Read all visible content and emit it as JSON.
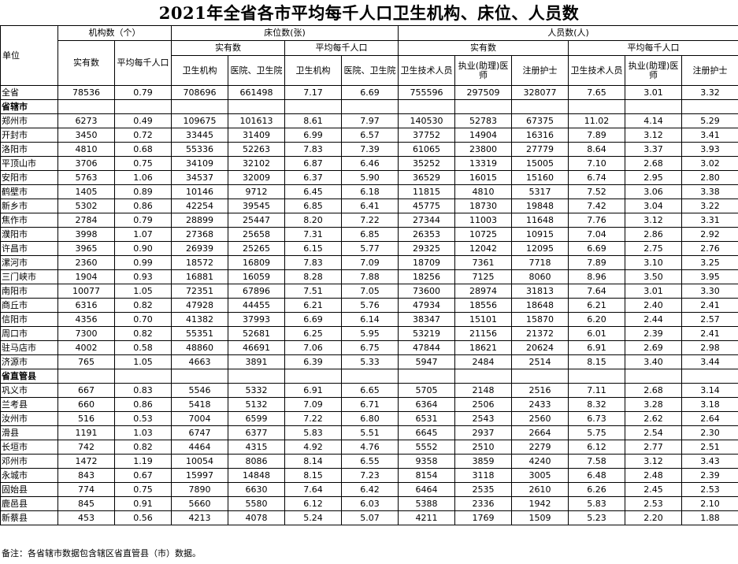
{
  "title": "2021年全省各市平均每千人口卫生机构、床位、人员数",
  "headers": {
    "unit": "单位",
    "institutions": "机构数（个）",
    "beds": "床位数(张)",
    "staff": "人员数(人)",
    "actual": "实有数",
    "per_thousand": "平均每千人口",
    "health_inst": "卫生机构",
    "hospital_center": "医院、卫生院",
    "health_tech": "卫生技术人员",
    "physician": "执业(助理)医师",
    "nurse": "注册护士"
  },
  "total_row": [
    "全省",
    "78536",
    "0.79",
    "708696",
    "661498",
    "7.17",
    "6.69",
    "755596",
    "297509",
    "328077",
    "7.65",
    "3.01",
    "3.32"
  ],
  "sections": [
    {
      "label": "省辖市",
      "rows": [
        [
          "郑州市",
          "6273",
          "0.49",
          "109675",
          "101613",
          "8.61",
          "7.97",
          "140530",
          "52783",
          "67375",
          "11.02",
          "4.14",
          "5.29"
        ],
        [
          "开封市",
          "3450",
          "0.72",
          "33445",
          "31409",
          "6.99",
          "6.57",
          "37752",
          "14904",
          "16316",
          "7.89",
          "3.12",
          "3.41"
        ],
        [
          "洛阳市",
          "4810",
          "0.68",
          "55336",
          "52263",
          "7.83",
          "7.39",
          "61065",
          "23800",
          "27779",
          "8.64",
          "3.37",
          "3.93"
        ],
        [
          "平顶山市",
          "3706",
          "0.75",
          "34109",
          "32102",
          "6.87",
          "6.46",
          "35252",
          "13319",
          "15005",
          "7.10",
          "2.68",
          "3.02"
        ],
        [
          "安阳市",
          "5763",
          "1.06",
          "34537",
          "32009",
          "6.37",
          "5.90",
          "36529",
          "16015",
          "15160",
          "6.74",
          "2.95",
          "2.80"
        ],
        [
          "鹤壁市",
          "1405",
          "0.89",
          "10146",
          "9712",
          "6.45",
          "6.18",
          "11815",
          "4810",
          "5317",
          "7.52",
          "3.06",
          "3.38"
        ],
        [
          "新乡市",
          "5302",
          "0.86",
          "42254",
          "39545",
          "6.85",
          "6.41",
          "45775",
          "18730",
          "19848",
          "7.42",
          "3.04",
          "3.22"
        ],
        [
          "焦作市",
          "2784",
          "0.79",
          "28899",
          "25447",
          "8.20",
          "7.22",
          "27344",
          "11003",
          "11648",
          "7.76",
          "3.12",
          "3.31"
        ],
        [
          "濮阳市",
          "3998",
          "1.07",
          "27368",
          "25658",
          "7.31",
          "6.85",
          "26353",
          "10725",
          "10915",
          "7.04",
          "2.86",
          "2.92"
        ],
        [
          "许昌市",
          "3965",
          "0.90",
          "26939",
          "25265",
          "6.15",
          "5.77",
          "29325",
          "12042",
          "12095",
          "6.69",
          "2.75",
          "2.76"
        ],
        [
          "漯河市",
          "2360",
          "0.99",
          "18572",
          "16809",
          "7.83",
          "7.09",
          "18709",
          "7361",
          "7718",
          "7.89",
          "3.10",
          "3.25"
        ],
        [
          "三门峡市",
          "1904",
          "0.93",
          "16881",
          "16059",
          "8.28",
          "7.88",
          "18256",
          "7125",
          "8060",
          "8.96",
          "3.50",
          "3.95"
        ],
        [
          "南阳市",
          "10077",
          "1.05",
          "72351",
          "67896",
          "7.51",
          "7.05",
          "73600",
          "28974",
          "31813",
          "7.64",
          "3.01",
          "3.30"
        ],
        [
          "商丘市",
          "6316",
          "0.82",
          "47928",
          "44455",
          "6.21",
          "5.76",
          "47934",
          "18556",
          "18648",
          "6.21",
          "2.40",
          "2.41"
        ],
        [
          "信阳市",
          "4356",
          "0.70",
          "41382",
          "37993",
          "6.69",
          "6.14",
          "38347",
          "15101",
          "15870",
          "6.20",
          "2.44",
          "2.57"
        ],
        [
          "周口市",
          "7300",
          "0.82",
          "55351",
          "52681",
          "6.25",
          "5.95",
          "53219",
          "21156",
          "21372",
          "6.01",
          "2.39",
          "2.41"
        ],
        [
          "驻马店市",
          "4002",
          "0.58",
          "48860",
          "46691",
          "7.06",
          "6.75",
          "47844",
          "18621",
          "20624",
          "6.91",
          "2.69",
          "2.98"
        ],
        [
          "济源市",
          "765",
          "1.05",
          "4663",
          "3891",
          "6.39",
          "5.33",
          "5947",
          "2484",
          "2514",
          "8.15",
          "3.40",
          "3.44"
        ]
      ]
    },
    {
      "label": "省直管县",
      "rows": [
        [
          "巩义市",
          "667",
          "0.83",
          "5546",
          "5332",
          "6.91",
          "6.65",
          "5705",
          "2148",
          "2516",
          "7.11",
          "2.68",
          "3.14"
        ],
        [
          "兰考县",
          "660",
          "0.86",
          "5418",
          "5132",
          "7.09",
          "6.71",
          "6364",
          "2506",
          "2433",
          "8.32",
          "3.28",
          "3.18"
        ],
        [
          "汝州市",
          "516",
          "0.53",
          "7004",
          "6599",
          "7.22",
          "6.80",
          "6531",
          "2543",
          "2560",
          "6.73",
          "2.62",
          "2.64"
        ],
        [
          "滑县",
          "1191",
          "1.03",
          "6747",
          "6377",
          "5.83",
          "5.51",
          "6645",
          "2937",
          "2664",
          "5.75",
          "2.54",
          "2.30"
        ],
        [
          "长垣市",
          "742",
          "0.82",
          "4464",
          "4315",
          "4.92",
          "4.76",
          "5552",
          "2510",
          "2279",
          "6.12",
          "2.77",
          "2.51"
        ],
        [
          "邓州市",
          "1472",
          "1.19",
          "10054",
          "8086",
          "8.14",
          "6.55",
          "9358",
          "3859",
          "4240",
          "7.58",
          "3.12",
          "3.43"
        ],
        [
          "永城市",
          "843",
          "0.67",
          "15997",
          "14848",
          "8.15",
          "7.23",
          "8154",
          "3118",
          "3005",
          "6.48",
          "2.48",
          "2.39"
        ],
        [
          "固始县",
          "774",
          "0.75",
          "7890",
          "6630",
          "7.64",
          "6.42",
          "6464",
          "2535",
          "2610",
          "6.26",
          "2.45",
          "2.53"
        ],
        [
          "鹿邑县",
          "845",
          "0.91",
          "5660",
          "5580",
          "6.12",
          "6.03",
          "5388",
          "2336",
          "1942",
          "5.83",
          "2.53",
          "2.10"
        ],
        [
          "新蔡县",
          "453",
          "0.56",
          "4213",
          "4078",
          "5.24",
          "5.07",
          "4211",
          "1769",
          "1509",
          "5.23",
          "2.20",
          "1.88"
        ]
      ]
    }
  ],
  "note": "备注：各省辖市数据包含辖区省直管县（市）数据。"
}
